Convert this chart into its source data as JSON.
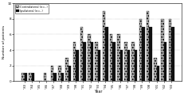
{
  "years": [
    "'83",
    "'84",
    "'85",
    "'86",
    "'87",
    "'88",
    "'89",
    "'90",
    "'91",
    "'92",
    "'93",
    "'94",
    "'95",
    "'96",
    "'97",
    "'98",
    "'99",
    "'00",
    "'01",
    "'02",
    "'03"
  ],
  "series1": [
    1,
    1,
    0,
    1,
    2,
    2,
    3,
    5,
    7,
    6,
    5,
    9,
    6,
    6,
    5,
    5,
    8,
    9,
    3,
    8,
    8
  ],
  "series2": [
    1,
    1,
    0,
    0,
    1,
    1,
    2,
    4,
    5,
    5,
    4,
    7,
    5,
    4,
    4,
    4,
    7,
    7,
    2,
    5,
    7
  ],
  "series1_label": "Contralateral (n=..)",
  "series2_label": "Ipsilateral (n=..)",
  "ylabel": "Number of patients",
  "xlabel": "Year",
  "ylim": [
    0,
    10
  ],
  "color1": "#bbbbbb",
  "color2": "#111111",
  "hatch1": ".....",
  "grid_linestyle": ":",
  "grid_color": "#888888"
}
